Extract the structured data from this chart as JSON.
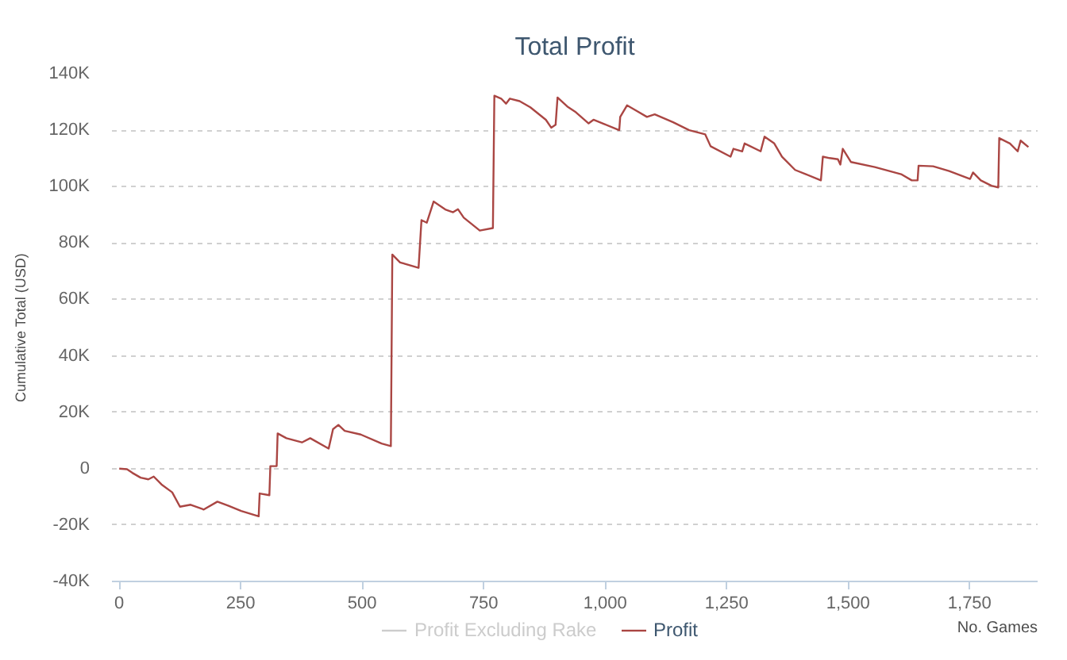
{
  "chart_data": {
    "type": "line",
    "title": "Total Profit",
    "ylabel": "Cumulative Total (USD)",
    "xlabel": "No. Games",
    "xlim": [
      -15,
      1890
    ],
    "ylim": [
      -40000,
      140000
    ],
    "xticks": [
      0,
      250,
      500,
      750,
      {
        "value": 1000,
        "label": "1,000"
      },
      {
        "value": 1250,
        "label": "1,250"
      },
      {
        "value": 1500,
        "label": "1,500"
      },
      {
        "value": 1750,
        "label": "1,750"
      }
    ],
    "yticks": [
      {
        "value": -40000,
        "label": "-40K"
      },
      {
        "value": -20000,
        "label": "-20K"
      },
      {
        "value": 0,
        "label": "0"
      },
      {
        "value": 20000,
        "label": "20K"
      },
      {
        "value": 40000,
        "label": "40K"
      },
      {
        "value": 60000,
        "label": "60K"
      },
      {
        "value": 80000,
        "label": "80K"
      },
      {
        "value": 100000,
        "label": "100K"
      },
      {
        "value": 120000,
        "label": "120K"
      },
      {
        "value": 140000,
        "label": "140K"
      }
    ],
    "grid": "y",
    "legend": "bottom",
    "x": [
      0,
      16,
      27,
      44,
      60,
      71,
      87,
      109,
      125,
      147,
      174,
      202,
      224,
      251,
      287,
      289,
      309,
      311,
      324,
      326,
      344,
      376,
      393,
      431,
      440,
      451,
      464,
      497,
      540,
      559,
      562,
      578,
      616,
      622,
      633,
      647,
      671,
      687,
      697,
      709,
      742,
      769,
      772,
      786,
      796,
      804,
      824,
      846,
      878,
      889,
      898,
      902,
      922,
      938,
      966,
      976,
      998,
      1029,
      1031,
      1045,
      1064,
      1086,
      1102,
      1140,
      1173,
      1206,
      1217,
      1258,
      1264,
      1282,
      1287,
      1320,
      1328,
      1348,
      1364,
      1391,
      1413,
      1444,
      1448,
      1462,
      1479,
      1484,
      1489,
      1506,
      1555,
      1609,
      1631,
      1643,
      1645,
      1675,
      1708,
      1751,
      1757,
      1773,
      1795,
      1809,
      1811,
      1833,
      1849,
      1855,
      1871
    ],
    "series": [
      {
        "name": "Profit Excluding Rake",
        "color": "#cccccc",
        "values": [
          null,
          null,
          null,
          null,
          null,
          null,
          null,
          null,
          null,
          null,
          null,
          null,
          null,
          null,
          null,
          null,
          null,
          null,
          null,
          null,
          null,
          null,
          null,
          null,
          null,
          null,
          null,
          null,
          null,
          null,
          null,
          null,
          null,
          null,
          null,
          null,
          null,
          null,
          null,
          null,
          null,
          null,
          null,
          null,
          null,
          null,
          null,
          null,
          null,
          null,
          null,
          null,
          null,
          null,
          null,
          null,
          null,
          null,
          null,
          null,
          null,
          null,
          null,
          null,
          null,
          null,
          null,
          null,
          null,
          null,
          null,
          null,
          null,
          null,
          null,
          null,
          null,
          null,
          null,
          null,
          null,
          null,
          null,
          null,
          null,
          null,
          null,
          null,
          null,
          null,
          null,
          null,
          null,
          null,
          null,
          null,
          null,
          null,
          null,
          null,
          null
        ]
      },
      {
        "name": "Profit",
        "color": "#aa4643",
        "values": [
          0,
          -200,
          -1500,
          -3200,
          -3800,
          -2800,
          -5600,
          -8400,
          -13500,
          -12800,
          -14500,
          -11700,
          -13100,
          -15000,
          -16900,
          -8800,
          -9400,
          900,
          900,
          12500,
          10800,
          9300,
          10800,
          7100,
          14000,
          15500,
          13400,
          12100,
          8900,
          8000,
          75900,
          73100,
          71200,
          88100,
          87200,
          94700,
          91900,
          90900,
          92000,
          89000,
          84400,
          85300,
          132200,
          131200,
          129400,
          131200,
          130300,
          128100,
          123700,
          120900,
          121900,
          131600,
          128400,
          126600,
          122400,
          123700,
          122200,
          120000,
          124700,
          128800,
          126900,
          124700,
          125600,
          122800,
          120000,
          118500,
          114300,
          110600,
          113400,
          112500,
          115300,
          112500,
          117700,
          115300,
          110600,
          105900,
          104400,
          102200,
          110600,
          110100,
          109700,
          107800,
          113400,
          108700,
          106900,
          104400,
          102200,
          102200,
          107400,
          107200,
          105500,
          102700,
          105000,
          102200,
          100300,
          99700,
          117200,
          115300,
          112500,
          116300,
          114000
        ]
      }
    ]
  }
}
